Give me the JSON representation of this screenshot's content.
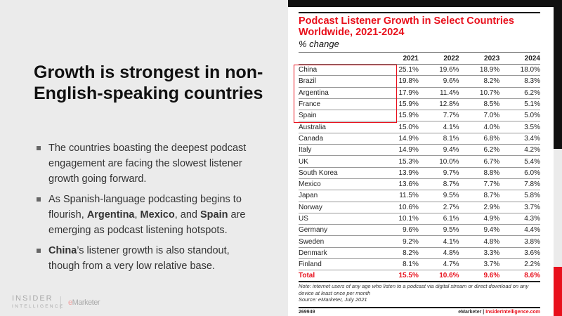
{
  "slide": {
    "headline": "Growth is strongest in non-English-speaking countries",
    "bullets": [
      {
        "parts": [
          "The countries boasting the deepest podcast engagement are facing the slowest listener growth going forward."
        ]
      },
      {
        "parts": [
          "As Spanish-language podcasting begins to flourish, ",
          "Argentina",
          ", ",
          "Mexico",
          ", and ",
          "Spain",
          " are emerging as podcast listening hotspots."
        ]
      },
      {
        "parts": [
          "China",
          "’s listener growth is also standout, though from a very low relative base."
        ]
      }
    ],
    "logo_top": "INSIDER",
    "logo_bottom": "INTELLIGENCE",
    "logo_emarketer": "eMarketer"
  },
  "chart": {
    "title": "Podcast Listener Growth in Select Countries Worldwide, 2021-2024",
    "subtitle": "% change",
    "columns": [
      "",
      "2021",
      "2022",
      "2023",
      "2024"
    ],
    "rows": [
      [
        "China",
        "25.1%",
        "19.6%",
        "18.9%",
        "18.0%"
      ],
      [
        "Brazil",
        "19.8%",
        "9.6%",
        "8.2%",
        "8.3%"
      ],
      [
        "Argentina",
        "17.9%",
        "11.4%",
        "10.7%",
        "6.2%"
      ],
      [
        "France",
        "15.9%",
        "12.8%",
        "8.5%",
        "5.1%"
      ],
      [
        "Spain",
        "15.9%",
        "7.7%",
        "7.0%",
        "5.0%"
      ],
      [
        "Australia",
        "15.0%",
        "4.1%",
        "4.0%",
        "3.5%"
      ],
      [
        "Canada",
        "14.9%",
        "8.1%",
        "6.8%",
        "3.4%"
      ],
      [
        "Italy",
        "14.9%",
        "9.4%",
        "6.2%",
        "4.2%"
      ],
      [
        "UK",
        "15.3%",
        "10.0%",
        "6.7%",
        "5.4%"
      ],
      [
        "South Korea",
        "13.9%",
        "9.7%",
        "8.8%",
        "6.0%"
      ],
      [
        "Mexico",
        "13.6%",
        "8.7%",
        "7.7%",
        "7.8%"
      ],
      [
        "Japan",
        "11.5%",
        "9.5%",
        "8.7%",
        "5.8%"
      ],
      [
        "Norway",
        "10.6%",
        "2.7%",
        "2.9%",
        "3.7%"
      ],
      [
        "US",
        "10.1%",
        "6.1%",
        "4.9%",
        "4.3%"
      ],
      [
        "Germany",
        "9.6%",
        "9.5%",
        "9.4%",
        "4.4%"
      ],
      [
        "Sweden",
        "9.2%",
        "4.1%",
        "4.8%",
        "3.8%"
      ],
      [
        "Denmark",
        "8.2%",
        "4.8%",
        "3.3%",
        "3.6%"
      ],
      [
        "Finland",
        "8.1%",
        "4.7%",
        "3.7%",
        "2.2%"
      ]
    ],
    "total": [
      "Total",
      "15.5%",
      "10.6%",
      "9.6%",
      "8.6%"
    ],
    "note": "Note: internet users of any age who listen to a podcast via digital stream or direct download on any device at least once per month",
    "source": "Source: eMarketer, July 2021",
    "id": "269949",
    "footer_left": "eMarketer",
    "footer_sep": " | ",
    "footer_right": "InsiderIntelligence.com",
    "accent": "#e8101c"
  }
}
